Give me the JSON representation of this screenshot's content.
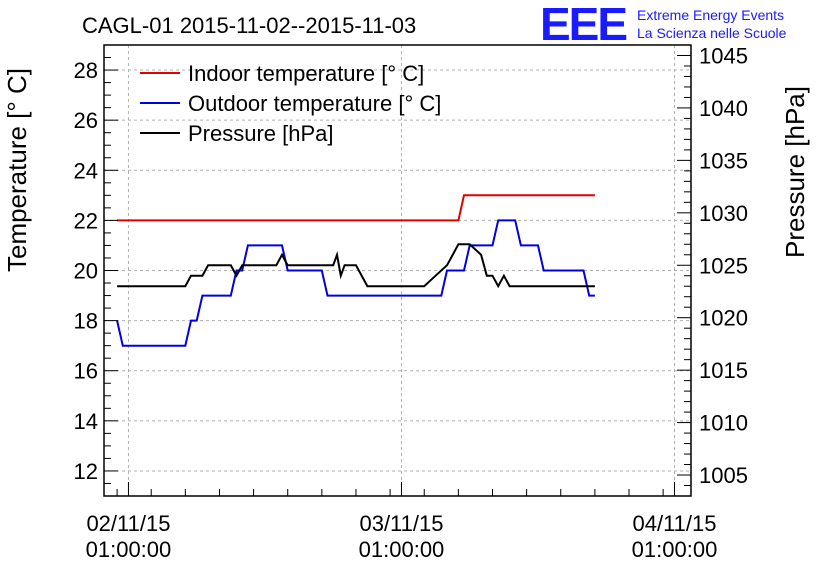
{
  "title": "CAGL-01 2015-11-02--2015-11-03",
  "logo": {
    "letters": "EEE",
    "line1": "Extreme Energy Events",
    "line2": "La Scienza nelle Scuole",
    "color": "#1a1aff"
  },
  "chart_data": {
    "type": "line",
    "title": "CAGL-01 2015-11-02--2015-11-03",
    "ylabel": "Temperature [° C]",
    "y2label": "Pressure [hPa]",
    "xlabel": "",
    "xlim": [
      "2015-11-01 22:51:00",
      "2015-11-04 02:27:00"
    ],
    "ylim": [
      11,
      29
    ],
    "y2lim": [
      1003,
      1046
    ],
    "grid": true,
    "legend_position": "top-left",
    "x_ticks": [
      {
        "date": "02/11/15",
        "time": "01:00:00",
        "x": "2015-11-02 01:00:00"
      },
      {
        "date": "03/11/15",
        "time": "01:00:00",
        "x": "2015-11-03 01:00:00"
      },
      {
        "date": "04/11/15",
        "time": "01:00:00",
        "x": "2015-11-04 01:00:00"
      }
    ],
    "y_ticks": [
      "12",
      "14",
      "16",
      "18",
      "20",
      "22",
      "24",
      "26",
      "28"
    ],
    "y2_ticks": [
      "1005",
      "1010",
      "1015",
      "1020",
      "1025",
      "1030",
      "1035",
      "1040",
      "1045"
    ],
    "series": [
      {
        "name": "Indoor temperature [° C]",
        "color": "#e00000",
        "axis": "left",
        "x": [
          "2015-11-02 00:00",
          "2015-11-03 06:00",
          "2015-11-03 06:30",
          "2015-11-03 18:00"
        ],
        "y": [
          22,
          22,
          23,
          23
        ]
      },
      {
        "name": "Outdoor temperature [° C]",
        "color": "#0000e0",
        "axis": "left",
        "x": [
          "2015-11-02 00:00",
          "2015-11-02 00:30",
          "2015-11-02 01:00",
          "2015-11-02 06:00",
          "2015-11-02 06:30",
          "2015-11-02 07:00",
          "2015-11-02 07:30",
          "2015-11-02 08:00",
          "2015-11-02 08:30",
          "2015-11-02 10:00",
          "2015-11-02 10:30",
          "2015-11-02 11:00",
          "2015-11-02 11:30",
          "2015-11-02 12:00",
          "2015-11-02 14:30",
          "2015-11-02 15:00",
          "2015-11-02 16:30",
          "2015-11-02 17:00",
          "2015-11-02 18:00",
          "2015-11-02 18:30",
          "2015-11-02 19:30",
          "2015-11-02 20:00",
          "2015-11-03 04:30",
          "2015-11-03 05:00",
          "2015-11-03 06:30",
          "2015-11-03 07:00",
          "2015-11-03 09:00",
          "2015-11-03 09:30",
          "2015-11-03 11:00",
          "2015-11-03 11:30",
          "2015-11-03 13:00",
          "2015-11-03 13:30",
          "2015-11-03 14:30",
          "2015-11-03 15:00",
          "2015-11-03 17:00",
          "2015-11-03 17:30",
          "2015-11-03 18:00"
        ],
        "y": [
          18,
          17,
          17,
          17,
          18,
          18,
          19,
          19,
          19,
          19,
          20,
          20,
          21,
          21,
          21,
          20,
          20,
          20,
          20,
          19,
          19,
          19,
          19,
          20,
          20,
          21,
          21,
          22,
          22,
          21,
          21,
          20,
          20,
          20,
          20,
          19,
          19
        ]
      },
      {
        "name": "Pressure [hPa]",
        "color": "#000000",
        "axis": "right",
        "x": [
          "2015-11-02 00:00",
          "2015-11-02 06:00",
          "2015-11-02 06:30",
          "2015-11-02 07:30",
          "2015-11-02 08:00",
          "2015-11-02 09:00",
          "2015-11-02 10:00",
          "2015-11-02 10:30",
          "2015-11-02 11:00",
          "2015-11-02 14:00",
          "2015-11-02 14:30",
          "2015-11-02 15:00",
          "2015-11-02 19:00",
          "2015-11-02 19:20",
          "2015-11-02 19:40",
          "2015-11-02 20:00",
          "2015-11-02 21:00",
          "2015-11-02 22:00",
          "2015-11-03 03:00",
          "2015-11-03 04:00",
          "2015-11-03 05:00",
          "2015-11-03 06:00",
          "2015-11-03 07:00",
          "2015-11-03 08:00",
          "2015-11-03 08:30",
          "2015-11-03 09:00",
          "2015-11-03 09:30",
          "2015-11-03 10:00",
          "2015-11-03 10:30",
          "2015-11-03 11:00",
          "2015-11-03 11:30",
          "2015-11-03 18:00"
        ],
        "y": [
          1023,
          1023,
          1024,
          1024,
          1025,
          1025,
          1025,
          1024,
          1025,
          1025,
          1026,
          1025,
          1025,
          1026,
          1024,
          1025,
          1025,
          1023,
          1023,
          1024,
          1025,
          1027,
          1027,
          1026,
          1024,
          1024,
          1023,
          1024,
          1023,
          1023,
          1023,
          1023
        ]
      }
    ]
  }
}
